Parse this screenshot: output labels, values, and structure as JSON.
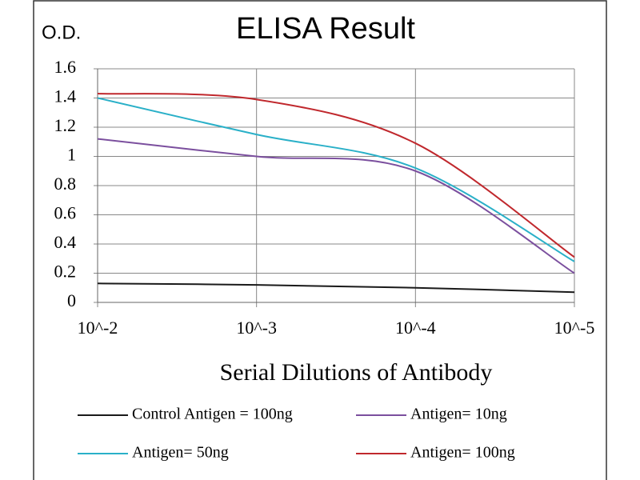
{
  "chart_data": {
    "type": "line",
    "title": "ELISA Result",
    "y_label": "O.D.",
    "x_label": "Serial Dilutions of Antibody",
    "categories": [
      "10^-2",
      "10^-3",
      "10^-4",
      "10^-5"
    ],
    "series": [
      {
        "name": "Control Antigen = 100ng",
        "color": "#1a1a1a",
        "values": [
          0.13,
          0.12,
          0.1,
          0.07
        ]
      },
      {
        "name": "Antigen= 10ng",
        "color": "#7b4f9e",
        "values": [
          1.12,
          1.0,
          0.9,
          0.2
        ]
      },
      {
        "name": "Antigen= 50ng",
        "color": "#2ab0c8",
        "values": [
          1.4,
          1.15,
          0.92,
          0.28
        ]
      },
      {
        "name": "Antigen= 100ng",
        "color": "#c0282d",
        "values": [
          1.43,
          1.39,
          1.09,
          0.31
        ]
      }
    ],
    "ylim": [
      0,
      1.6
    ],
    "yticks": [
      0,
      0.2,
      0.4,
      0.6,
      0.8,
      1,
      1.2,
      1.4,
      1.6
    ],
    "grid": true,
    "legend": "bottom"
  }
}
